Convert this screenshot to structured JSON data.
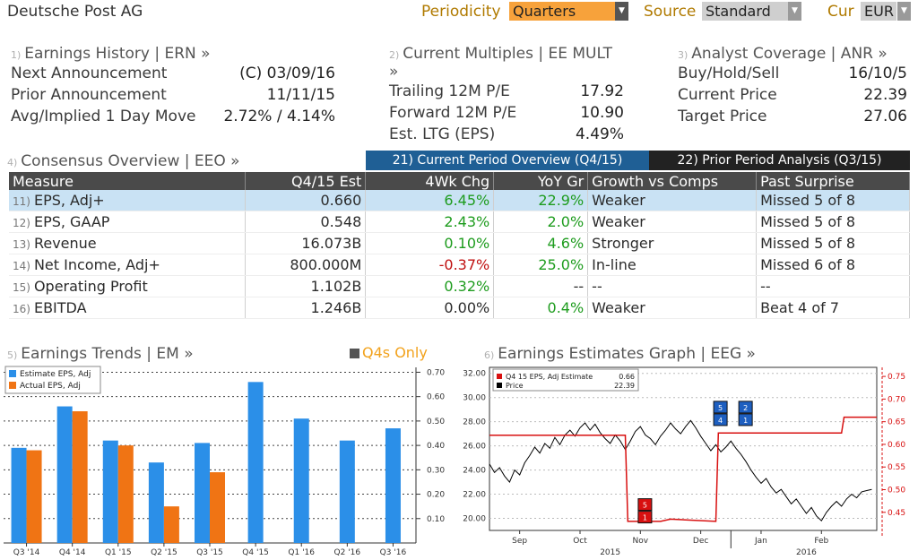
{
  "header": {
    "company": "Deutsche Post AG",
    "periodicity_label": "Periodicity",
    "periodicity_value": "Quarters",
    "source_label": "Source",
    "source_value": "Standard",
    "cur_label": "Cur",
    "cur_value": "EUR"
  },
  "earnings_history": {
    "num": "1)",
    "title": "Earnings History | ERN »",
    "rows": [
      {
        "label": "Next Announcement",
        "value": "(C)  03/09/16"
      },
      {
        "label": "Prior Announcement",
        "value": "11/11/15"
      },
      {
        "label": "Avg/Implied 1 Day Move",
        "value": "2.72% / 4.14%"
      }
    ]
  },
  "current_multiples": {
    "num": "2)",
    "title": "Current Multiples | EE MULT »",
    "rows": [
      {
        "label": "Trailing 12M P/E",
        "value": "17.92"
      },
      {
        "label": "Forward 12M P/E",
        "value": "10.90"
      },
      {
        "label": "Est. LTG (EPS)",
        "value": "4.49%"
      }
    ]
  },
  "analyst_coverage": {
    "num": "3)",
    "title": "Analyst Coverage | ANR »",
    "rows": [
      {
        "label": "Buy/Hold/Sell",
        "value": "16/10/5"
      },
      {
        "label": "Current Price",
        "value": "22.39"
      },
      {
        "label": "Target Price",
        "value": "27.06"
      }
    ]
  },
  "consensus": {
    "num": "4)",
    "title": "Consensus Overview | EEO »",
    "tab_current": "21) Current Period Overview (Q4/15)",
    "tab_prior": "22) Prior Period Analysis (Q3/15)",
    "columns": [
      "Measure",
      "Q4/15 Est",
      "4Wk Chg",
      "YoY Gr",
      "Growth vs Comps",
      "Past Surprise"
    ],
    "rows": [
      {
        "idx": "11)",
        "measure": "EPS, Adj+",
        "est": "0.660",
        "chg": "6.45%",
        "yoy": "22.9%",
        "growth": "Weaker",
        "surprise": "Missed 5 of 8"
      },
      {
        "idx": "12)",
        "measure": "EPS, GAAP",
        "est": "0.548",
        "chg": "2.43%",
        "yoy": "2.0%",
        "growth": "Weaker",
        "surprise": "Missed 5 of 8"
      },
      {
        "idx": "13)",
        "measure": "Revenue",
        "est": "16.073B",
        "chg": "0.10%",
        "yoy": "4.6%",
        "growth": "Stronger",
        "surprise": "Missed 5 of 8"
      },
      {
        "idx": "14)",
        "measure": "Net Income, Adj+",
        "est": "800.000M",
        "chg": "-0.37%",
        "yoy": "25.0%",
        "growth": "In-line",
        "surprise": "Missed 6 of 8"
      },
      {
        "idx": "15)",
        "measure": "Operating Profit",
        "est": "1.102B",
        "chg": "0.32%",
        "yoy": "--",
        "growth": "--",
        "surprise": "--"
      },
      {
        "idx": "16)",
        "measure": "EBITDA",
        "est": "1.246B",
        "chg": "0.00%",
        "yoy": "0.4%",
        "growth": "Weaker",
        "surprise": "Beat 4 of 7"
      }
    ]
  },
  "earnings_trends": {
    "num": "5)",
    "title": "Earnings Trends | EM »",
    "toggle": "Q4s Only"
  },
  "earnings_graph": {
    "num": "6)",
    "title": "Earnings Estimates Graph | EEG »"
  },
  "colors": {
    "estimate": "#2b8fe8",
    "actual": "#f07414",
    "eps_line": "#d81010",
    "price_line": "#000000",
    "dropdown_active": "#f7a23b"
  },
  "chart_data": [
    {
      "type": "bar",
      "legend": [
        "Estimate EPS, Adj",
        "Actual EPS, Adj"
      ],
      "legend_position": "top-left",
      "categories": [
        "Q3 '14",
        "Q4 '14",
        "Q1 '15",
        "Q2 '15",
        "Q3 '15",
        "Q4 '15",
        "Q1 '16",
        "Q2 '16",
        "Q3 '16"
      ],
      "series": [
        {
          "name": "Estimate EPS, Adj",
          "values": [
            0.39,
            0.56,
            0.42,
            0.33,
            0.41,
            0.66,
            0.51,
            0.42,
            0.47
          ]
        },
        {
          "name": "Actual EPS, Adj",
          "values": [
            0.38,
            0.54,
            0.4,
            0.15,
            0.29,
            null,
            null,
            null,
            null
          ]
        }
      ],
      "y_ticks": [
        "0.10",
        "0.20",
        "0.30",
        "0.40",
        "0.50",
        "0.60",
        "0.70"
      ],
      "ylim": [
        0.0,
        0.72
      ],
      "grid": true
    },
    {
      "type": "line",
      "legend": [
        {
          "name": "Q4 15 EPS, Adj Estimate",
          "value": "0.66"
        },
        {
          "name": "Price",
          "value": "22.39"
        }
      ],
      "legend_position": "top-left",
      "x_labels": [
        "Sep",
        "Oct",
        "Nov",
        "Dec",
        "Jan",
        "Feb"
      ],
      "x_year_labels": [
        "2015",
        "2016"
      ],
      "y_left_ticks": [
        "20.00",
        "22.00",
        "24.00",
        "26.00",
        "28.00",
        "30.00",
        "32.00"
      ],
      "y_right_ticks": [
        "0.45",
        "0.50",
        "0.55",
        "0.60",
        "0.65",
        "0.70",
        "0.75"
      ],
      "y_left_lim": [
        19.0,
        32.5
      ],
      "y_right_lim": [
        0.41,
        0.77
      ],
      "series": [
        {
          "name": "Q4 15 EPS, Adj Estimate",
          "axis": "right",
          "points": [
            [
              0,
              0.62
            ],
            [
              27,
              0.62
            ],
            [
              27.5,
              0.43
            ],
            [
              34,
              0.43
            ],
            [
              36,
              0.435
            ],
            [
              45,
              0.43
            ],
            [
              45.5,
              0.625
            ],
            [
              70,
              0.625
            ],
            [
              70.5,
              0.66
            ],
            [
              77,
              0.66
            ]
          ]
        },
        {
          "name": "Price",
          "axis": "left",
          "points": [
            [
              0,
              24.5
            ],
            [
              1,
              23.8
            ],
            [
              2,
              24.2
            ],
            [
              3,
              23.5
            ],
            [
              4,
              23.0
            ],
            [
              5,
              24.0
            ],
            [
              6,
              23.6
            ],
            [
              7,
              24.6
            ],
            [
              8,
              25.2
            ],
            [
              9,
              25.9
            ],
            [
              10,
              25.4
            ],
            [
              11,
              26.2
            ],
            [
              12,
              25.8
            ],
            [
              13,
              26.7
            ],
            [
              14,
              26.1
            ],
            [
              15,
              26.9
            ],
            [
              16,
              27.3
            ],
            [
              17,
              26.8
            ],
            [
              18,
              27.5
            ],
            [
              19,
              27.9
            ],
            [
              20,
              27.3
            ],
            [
              21,
              27.8
            ],
            [
              22,
              27.1
            ],
            [
              23,
              26.6
            ],
            [
              24,
              26.2
            ],
            [
              25,
              26.9
            ],
            [
              26,
              26.4
            ],
            [
              27,
              25.7
            ],
            [
              28,
              26.4
            ],
            [
              29,
              27.2
            ],
            [
              30,
              27.6
            ],
            [
              31,
              26.9
            ],
            [
              32,
              26.6
            ],
            [
              33,
              26.1
            ],
            [
              34,
              26.8
            ],
            [
              35,
              27.3
            ],
            [
              36,
              27.9
            ],
            [
              37,
              27.4
            ],
            [
              38,
              27.0
            ],
            [
              39,
              27.6
            ],
            [
              40,
              28.1
            ],
            [
              41,
              27.5
            ],
            [
              42,
              26.8
            ],
            [
              43,
              26.2
            ],
            [
              44,
              25.6
            ],
            [
              45,
              26.1
            ],
            [
              46,
              25.5
            ],
            [
              47,
              25.9
            ],
            [
              48,
              26.4
            ],
            [
              49,
              25.8
            ],
            [
              50,
              25.3
            ],
            [
              51,
              24.7
            ],
            [
              52,
              24.0
            ],
            [
              53,
              23.4
            ],
            [
              54,
              22.9
            ],
            [
              55,
              23.3
            ],
            [
              56,
              22.6
            ],
            [
              57,
              22.1
            ],
            [
              58,
              22.4
            ],
            [
              59,
              21.8
            ],
            [
              60,
              21.2
            ],
            [
              61,
              21.6
            ],
            [
              62,
              21.0
            ],
            [
              63,
              20.4
            ],
            [
              64,
              20.9
            ],
            [
              65,
              20.2
            ],
            [
              66,
              19.8
            ],
            [
              67,
              20.5
            ],
            [
              68,
              21.0
            ],
            [
              69,
              21.4
            ],
            [
              70,
              21.0
            ],
            [
              71,
              21.6
            ],
            [
              72,
              22.0
            ],
            [
              73,
              21.7
            ],
            [
              74,
              22.2
            ],
            [
              75,
              22.3
            ],
            [
              76,
              22.39
            ]
          ]
        }
      ],
      "markers": [
        {
          "labels": [
            "5",
            "1"
          ],
          "color": "#d81010"
        },
        {
          "labels": [
            "5",
            "4"
          ],
          "color": "#1e5fc0"
        },
        {
          "labels": [
            "2",
            "1"
          ],
          "color": "#1e5fc0"
        }
      ],
      "grid": true
    }
  ]
}
